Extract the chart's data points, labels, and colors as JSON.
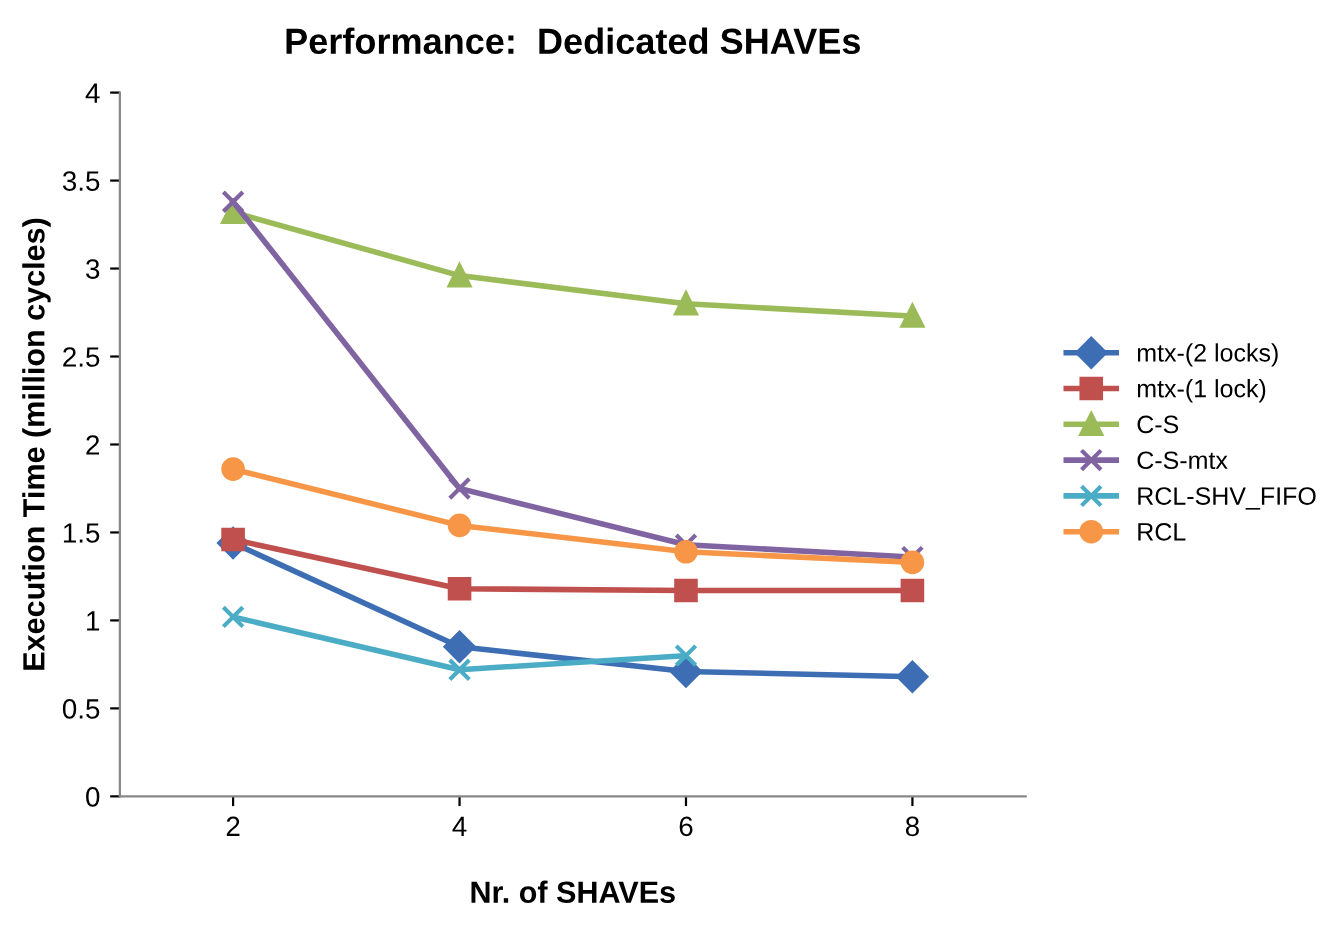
{
  "chart_data": {
    "type": "line",
    "title": "Performance:  Dedicated SHAVEs",
    "xlabel": "Nr. of SHAVEs",
    "ylabel": "Execution Time (million cycles)",
    "x": [
      2,
      4,
      6,
      8
    ],
    "xlim": [
      1,
      9
    ],
    "xticks": [
      2,
      4,
      6,
      8
    ],
    "ylim": [
      0,
      4
    ],
    "yticks": [
      0,
      0.5,
      1,
      1.5,
      2,
      2.5,
      3,
      3.5,
      4
    ],
    "grid": false,
    "legend": "right",
    "series": [
      {
        "name": "mtx-(2 locks)",
        "color": "#3d6eb4",
        "marker": "diamond",
        "values": [
          1.44,
          0.85,
          0.71,
          0.68
        ]
      },
      {
        "name": "mtx-(1 lock)",
        "color": "#c0504d",
        "marker": "square",
        "values": [
          1.46,
          1.18,
          1.17,
          1.17
        ]
      },
      {
        "name": "C-S",
        "color": "#9bbb59",
        "marker": "triangle",
        "values": [
          3.32,
          2.96,
          2.8,
          2.73
        ]
      },
      {
        "name": "C-S-mtx",
        "color": "#8064a2",
        "marker": "cross",
        "values": [
          3.38,
          1.75,
          1.43,
          1.36
        ]
      },
      {
        "name": "RCL-SHV_FIFO",
        "color": "#4bacc6",
        "marker": "cross",
        "values": [
          1.02,
          0.72,
          0.8,
          null
        ]
      },
      {
        "name": "RCL",
        "color": "#f79646",
        "marker": "circle",
        "values": [
          1.86,
          1.54,
          1.39,
          1.33
        ]
      }
    ]
  }
}
